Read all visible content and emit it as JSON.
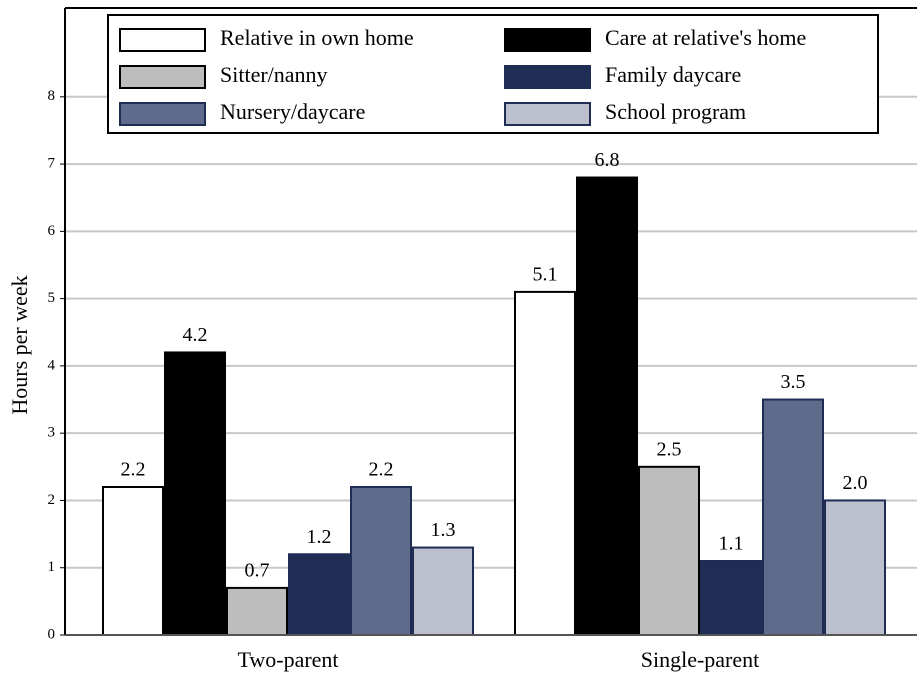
{
  "chart_data": {
    "type": "bar",
    "ylabel": "Hours per week",
    "categories": [
      "Two-parent",
      "Single-parent"
    ],
    "series": [
      {
        "name": "Relative in own home",
        "color": "#ffffff",
        "edge": "#000000",
        "values": [
          2.2,
          5.1
        ],
        "value_labels": [
          "2.2",
          "5.1"
        ]
      },
      {
        "name": "Care at relative's home",
        "color": "#000000",
        "edge": "#000000",
        "values": [
          4.2,
          6.8
        ],
        "value_labels": [
          "4.2",
          "6.8"
        ]
      },
      {
        "name": "Sitter/nanny",
        "color": "#bdbdbd",
        "edge": "#000000",
        "values": [
          0.7,
          2.5
        ],
        "value_labels": [
          "0.7",
          "2.5"
        ]
      },
      {
        "name": "Family daycare",
        "color": "#1f2d55",
        "edge": "#1f2d55",
        "values": [
          1.2,
          1.1
        ],
        "value_labels": [
          "1.2",
          "1.1"
        ]
      },
      {
        "name": "Nursery/daycare",
        "color": "#5f6b8a",
        "edge": "#1f2d55",
        "values": [
          2.2,
          3.5
        ],
        "value_labels": [
          "2.2",
          "3.5"
        ]
      },
      {
        "name": "School program",
        "color": "#bcc0cd",
        "edge": "#1f2d55",
        "values": [
          1.3,
          2.0
        ],
        "value_labels": [
          "1.3",
          "2.0"
        ]
      }
    ],
    "ylim": [
      0,
      9.32
    ],
    "yticks": [
      0,
      1,
      2,
      3,
      4,
      5,
      6,
      7,
      8
    ],
    "grid": true,
    "legend": "top"
  }
}
